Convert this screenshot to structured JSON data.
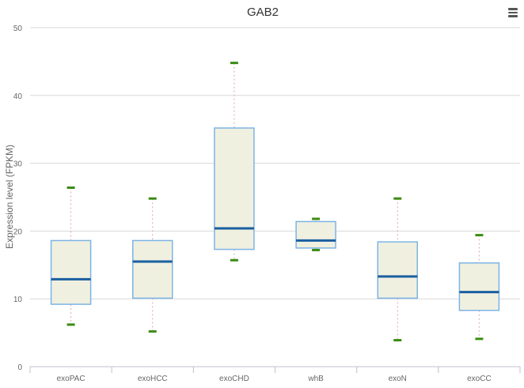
{
  "chart_data": {
    "type": "box",
    "title": "GAB2",
    "ylabel": "Expression level (FPKM)",
    "xlabel": "",
    "ylim": [
      0,
      50
    ],
    "yticks": [
      0,
      10,
      20,
      30,
      40,
      50
    ],
    "grid": true,
    "categories": [
      "exoPAC",
      "exoHCC",
      "exoCHD",
      "whB",
      "exoN",
      "exoCC"
    ],
    "boxes": [
      {
        "category": "exoPAC",
        "min": 6.2,
        "q1": 9.2,
        "median": 12.9,
        "q3": 18.6,
        "max": 26.4
      },
      {
        "category": "exoHCC",
        "min": 5.2,
        "q1": 10.1,
        "median": 15.5,
        "q3": 18.6,
        "max": 24.8
      },
      {
        "category": "exoCHD",
        "min": 15.7,
        "q1": 17.3,
        "median": 20.4,
        "q3": 35.2,
        "max": 44.8
      },
      {
        "category": "whB",
        "min": 17.2,
        "q1": 17.5,
        "median": 18.6,
        "q3": 21.4,
        "max": 21.8
      },
      {
        "category": "exoN",
        "min": 3.9,
        "q1": 10.1,
        "median": 13.3,
        "q3": 18.4,
        "max": 24.8
      },
      {
        "category": "exoCC",
        "min": 4.1,
        "q1": 8.3,
        "median": 11.0,
        "q3": 15.3,
        "max": 19.4
      }
    ],
    "colors": {
      "box_fill": "#f0f0e1",
      "box_stroke": "#7cb4e4",
      "median": "#1a5fa0",
      "whisker": "#e6a0b0",
      "whisker_cap": "#3c8c14",
      "grid": "#d8d8d8",
      "axis": "#c0c0d0",
      "text": "#666666"
    }
  },
  "toolbar": {
    "menu_icon": "hamburger-menu-icon"
  }
}
